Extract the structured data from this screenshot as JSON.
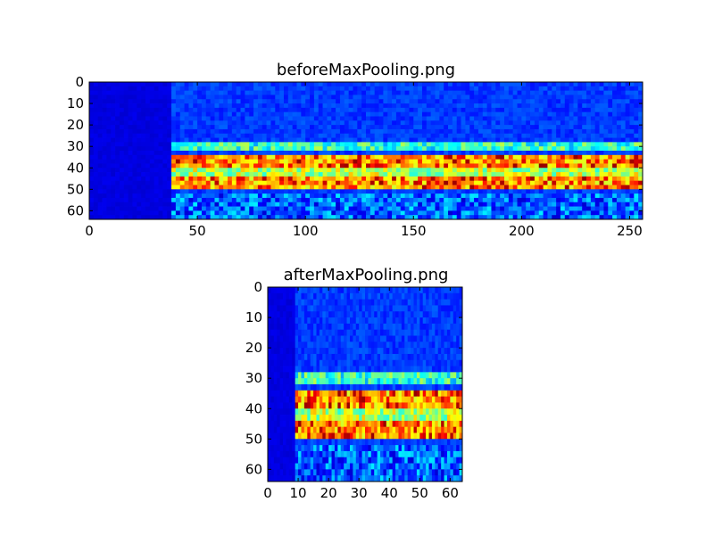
{
  "chart_data": [
    {
      "type": "heatmap",
      "title": "beforeMaxPooling.png",
      "xlabel": "",
      "ylabel": "",
      "xlim": [
        0,
        256
      ],
      "ylim": [
        64,
        0
      ],
      "xticks": [
        "0",
        "50",
        "100",
        "150",
        "200",
        "250"
      ],
      "yticks": [
        "0",
        "10",
        "20",
        "30",
        "40",
        "50",
        "60"
      ],
      "colormap": "jet",
      "grid": false,
      "legend": "none",
      "dark_region_x_end": 38,
      "bands": [
        {
          "y_start": 29,
          "y_end": 33,
          "level": "cyan"
        },
        {
          "y_start": 35,
          "y_end": 40,
          "level": "yellow-red"
        },
        {
          "y_start": 41,
          "y_end": 45,
          "level": "cyan-green"
        },
        {
          "y_start": 45,
          "y_end": 50,
          "level": "yellow-red"
        },
        {
          "y_start": 52,
          "y_end": 64,
          "level": "blue"
        }
      ]
    },
    {
      "type": "heatmap",
      "title": "afterMaxPooling.png",
      "xlabel": "",
      "ylabel": "",
      "xlim": [
        0,
        64
      ],
      "ylim": [
        64,
        0
      ],
      "xticks": [
        "0",
        "10",
        "20",
        "30",
        "40",
        "50",
        "60"
      ],
      "yticks": [
        "0",
        "10",
        "20",
        "30",
        "40",
        "50",
        "60"
      ],
      "colormap": "jet",
      "grid": false,
      "legend": "none",
      "dark_region_x_end": 9,
      "bands": [
        {
          "y_start": 29,
          "y_end": 33,
          "level": "cyan"
        },
        {
          "y_start": 35,
          "y_end": 40,
          "level": "yellow-red"
        },
        {
          "y_start": 41,
          "y_end": 45,
          "level": "cyan-green"
        },
        {
          "y_start": 45,
          "y_end": 50,
          "level": "yellow-red"
        },
        {
          "y_start": 52,
          "y_end": 64,
          "level": "blue"
        }
      ]
    }
  ]
}
